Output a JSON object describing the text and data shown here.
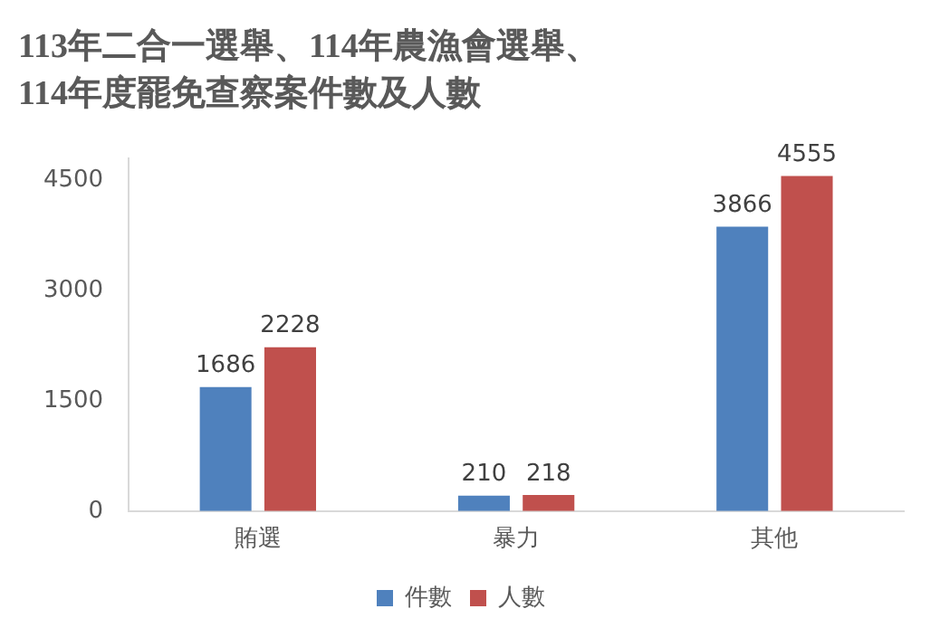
{
  "chart_data": {
    "type": "bar",
    "title": "113年二合一選舉、114年農漁會選舉、\n114年度罷免查察案件數及人數",
    "categories": [
      "賄選",
      "暴力",
      "其他"
    ],
    "series": [
      {
        "name": "件數",
        "color": "#4f81bd",
        "values": [
          1686,
          210,
          3866
        ]
      },
      {
        "name": "人數",
        "color": "#c0504d",
        "values": [
          2228,
          218,
          4555
        ]
      }
    ],
    "ylim": [
      0,
      4800
    ],
    "yticks": [
      0,
      1500,
      3000,
      4500
    ],
    "grid": false,
    "legend": "bottom",
    "data_labels": true
  }
}
